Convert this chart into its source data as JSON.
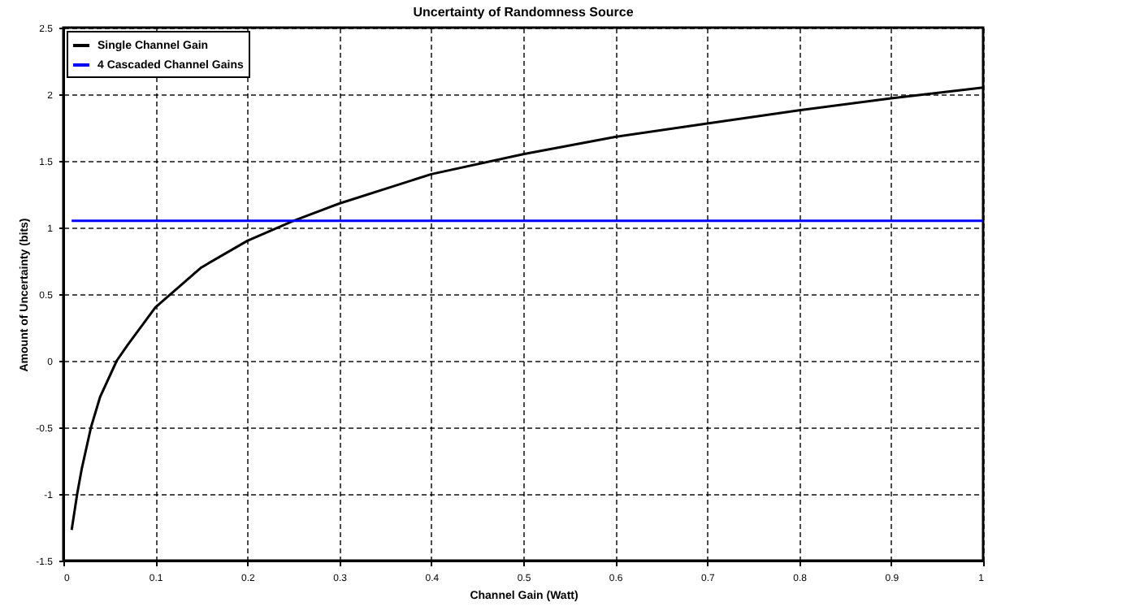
{
  "chart_data": {
    "type": "line",
    "title": "Uncertainty of Randomness Source",
    "xlabel": "Channel Gain (Watt)",
    "ylabel": "Amount of Uncertainty (bits)",
    "xlim": [
      0,
      1
    ],
    "xticks": [
      0,
      0.1,
      0.2,
      0.3,
      0.4,
      0.5,
      0.6,
      0.7,
      0.8,
      0.9,
      1
    ],
    "ylim": [
      -1.5,
      2.5
    ],
    "yticks": [
      -1.5,
      -1,
      -0.5,
      0,
      0.5,
      1,
      1.5,
      2,
      2.5
    ],
    "grid": true,
    "legend": "top left",
    "marker": "none",
    "line_style": "solid",
    "series": [
      {
        "name": "Single Channel Gain",
        "color": "#000000",
        "x": [
          0.009,
          0.015,
          0.02,
          0.03,
          0.04,
          0.058,
          0.07,
          0.1,
          0.15,
          0.2,
          0.25,
          0.3,
          0.4,
          0.5,
          0.6,
          0.7,
          0.8,
          0.9,
          1
        ],
        "values": [
          -1.27,
          -1.0,
          -0.81,
          -0.5,
          -0.27,
          0,
          0.12,
          0.4,
          0.7,
          0.9,
          1.05,
          1.18,
          1.4,
          1.55,
          1.68,
          1.78,
          1.88,
          1.97,
          2.05
        ]
      },
      {
        "name": "4 Cascaded Channel Gains",
        "color": "#0000ff",
        "x": [
          0.009,
          1
        ],
        "values": [
          1.05,
          1.05
        ]
      }
    ]
  }
}
